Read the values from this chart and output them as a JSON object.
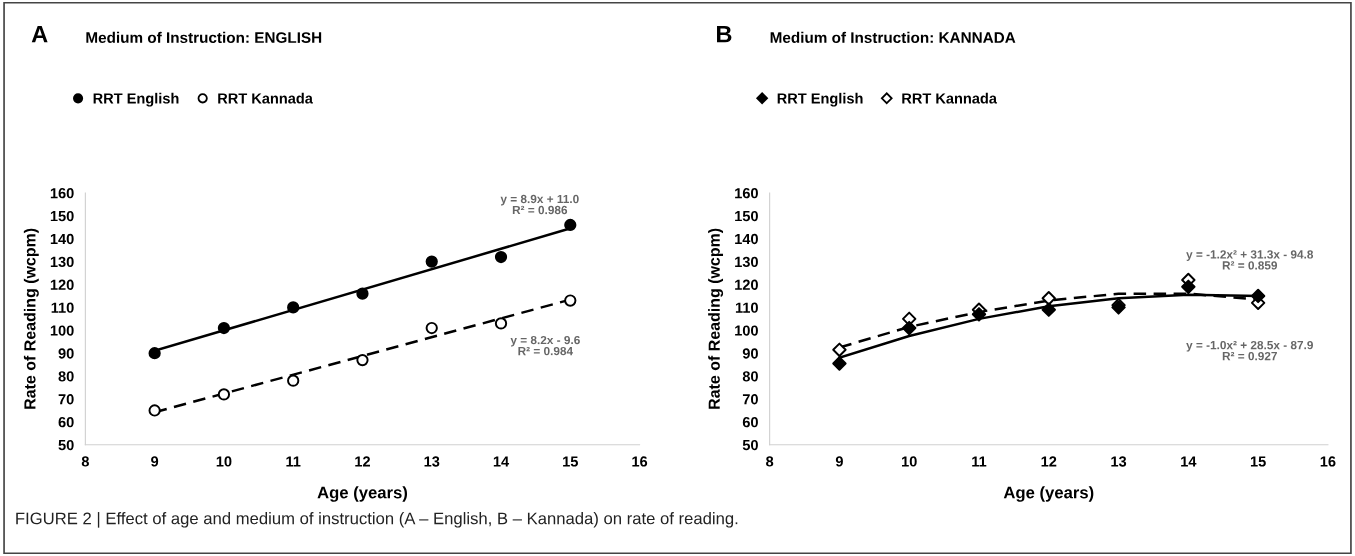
{
  "chart_data": [
    {
      "type": "scatter",
      "title": "Medium of Instruction: ENGLISH",
      "xlabel": "Age (years)",
      "ylabel": "Rate of Reading (wcpm)",
      "x": [
        9,
        10,
        11,
        12,
        13,
        14,
        15
      ],
      "series": [
        {
          "name": "RRT English",
          "color": "#000000",
          "marker": "circle",
          "values": [
            90,
            101,
            110,
            116,
            130,
            132,
            146
          ]
        },
        {
          "name": "RRT Kannada",
          "color": "#ffffff",
          "marker": "circle",
          "values": [
            65,
            72,
            78,
            87,
            101,
            103,
            113
          ]
        },
        {
          "type": "line",
          "color": "#000000",
          "line_style": "solid",
          "x": [
            9,
            15
          ],
          "values": [
            91.1,
            144.5
          ]
        },
        {
          "type": "line",
          "color": "#000000",
          "line_style": "dashed",
          "x": [
            9,
            15
          ],
          "values": [
            64.2,
            113.4
          ]
        }
      ],
      "xlim": [
        8,
        16
      ],
      "xticks": [
        8,
        9,
        10,
        11,
        12,
        13,
        14,
        15,
        16
      ],
      "ylim": [
        50,
        160
      ],
      "yticks": [
        50,
        60,
        70,
        80,
        90,
        100,
        110,
        120,
        130,
        140,
        150,
        160
      ],
      "grid": false,
      "legend": "top left",
      "annotations": [
        "A",
        "y = 8.9x + 11.0\nR² = 0.986",
        "y = 8.2x - 9.6\nR² = 0.984"
      ]
    },
    {
      "type": "scatter",
      "title": "Medium of Instruction: KANNADA",
      "xlabel": "Age (years)",
      "ylabel": "Rate of Reading (wcpm)",
      "x": [
        9,
        10,
        11,
        12,
        13,
        14,
        15
      ],
      "series": [
        {
          "name": "RRT English",
          "color": "#000000",
          "marker": "diamond",
          "values": [
            85.5,
            101,
            107,
            109,
            110,
            119,
            115
          ]
        },
        {
          "name": "RRT Kannada",
          "color": "#ffffff",
          "marker": "diamond",
          "values": [
            91.5,
            105,
            109,
            114,
            111,
            122,
            112
          ]
        },
        {
          "type": "line",
          "color": "#000000",
          "line_style": "solid",
          "x": [
            9,
            10,
            11,
            12,
            13,
            14,
            15
          ],
          "values": [
            88,
            97.5,
            105,
            110.5,
            114,
            115.5,
            115
          ]
        },
        {
          "type": "line",
          "color": "#000000",
          "line_style": "dashed",
          "x": [
            9,
            10,
            11,
            12,
            13,
            14,
            15
          ],
          "values": [
            92.5,
            101.5,
            108,
            113,
            116,
            116,
            113.5
          ]
        }
      ],
      "xlim": [
        8,
        16
      ],
      "xticks": [
        8,
        9,
        10,
        11,
        12,
        13,
        14,
        15,
        16
      ],
      "ylim": [
        50,
        160
      ],
      "yticks": [
        50,
        60,
        70,
        80,
        90,
        100,
        110,
        120,
        130,
        140,
        150,
        160
      ],
      "grid": false,
      "legend": "top left",
      "annotations": [
        "B",
        "y = -1.2x² + 31.3x - 94.8\nR² = 0.859",
        "y = -1.0x² + 28.5x - 87.9\nR² = 0.927",
        "FIGURE 2 | Effect of age and medium of instruction (A – English, B – Kannada) on rate of reading."
      ]
    }
  ]
}
